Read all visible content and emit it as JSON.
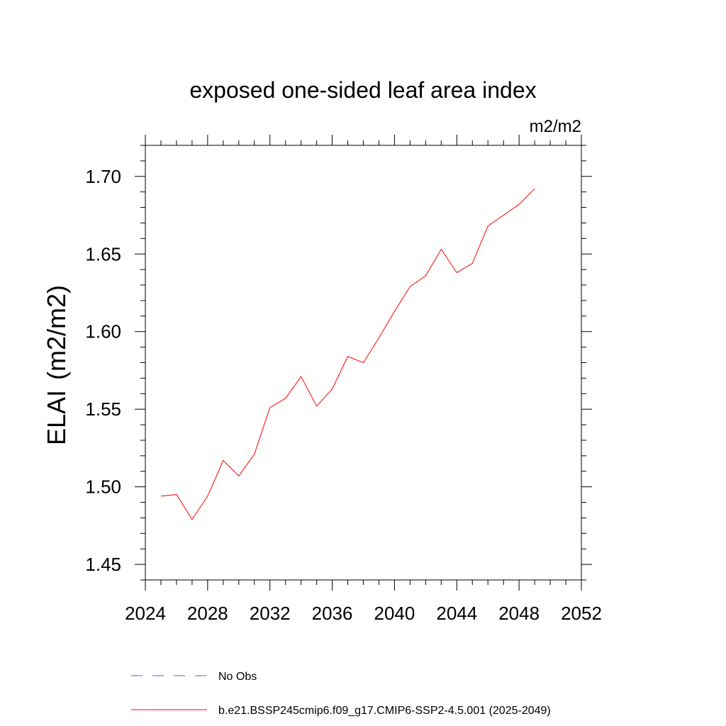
{
  "chart_data": {
    "type": "line",
    "title": "exposed one-sided leaf area index",
    "units": "m2/m2",
    "ylabel_main": "ELAI",
    "ylabel_units": "(m2/m2)",
    "xlim": [
      2024,
      2052
    ],
    "ylim": [
      1.44,
      1.72
    ],
    "xticks": [
      "2024",
      "2028",
      "2032",
      "2036",
      "2040",
      "2044",
      "2048",
      "2052"
    ],
    "yticks": [
      "1.45",
      "1.50",
      "1.55",
      "1.60",
      "1.65",
      "1.70"
    ],
    "grid": false,
    "series": [
      {
        "name": "b.e21.BSSP245cmip6.f09_g17.CMIP6-SSP2-4.5.001 (2025-2049)",
        "color": "#ff0000",
        "style": "solid",
        "x": [
          2025,
          2026,
          2027,
          2028,
          2029,
          2030,
          2031,
          2032,
          2033,
          2034,
          2035,
          2036,
          2037,
          2038,
          2039,
          2040,
          2041,
          2042,
          2043,
          2044,
          2045,
          2046,
          2047,
          2048,
          2049
        ],
        "y": [
          1.494,
          1.495,
          1.479,
          1.494,
          1.517,
          1.507,
          1.521,
          1.551,
          1.557,
          1.571,
          1.552,
          1.563,
          1.584,
          1.58,
          1.596,
          1.613,
          1.629,
          1.636,
          1.653,
          1.638,
          1.644,
          1.668,
          1.675,
          1.682,
          1.692
        ]
      }
    ],
    "legend": [
      {
        "label": "No Obs",
        "color": "#6a5acd",
        "style": "dashed"
      },
      {
        "label": "b.e21.BSSP245cmip6.f09_g17.CMIP6-SSP2-4.5.001 (2025-2049)",
        "color": "#ff0000",
        "style": "solid"
      }
    ],
    "legend_position": "bottom"
  }
}
